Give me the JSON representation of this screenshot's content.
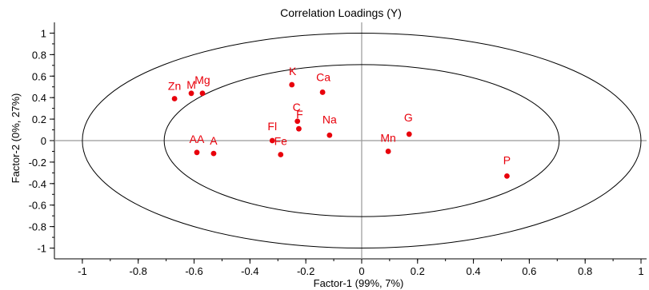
{
  "chart_data": {
    "type": "scatter",
    "title": "Correlation Loadings (Y)",
    "xlabel": "Factor-1 (99%, 7%)",
    "ylabel": "Factor-2 (0%, 27%)",
    "xlim": [
      -1.1,
      1.02
    ],
    "ylim": [
      -1.1,
      1.1
    ],
    "xticks": [
      -1,
      -0.8,
      -0.6,
      -0.4,
      -0.2,
      0,
      0.2,
      0.4,
      0.6,
      0.8,
      1
    ],
    "yticks": [
      1,
      0.8,
      0.6,
      0.4,
      0.2,
      0,
      -0.2,
      -0.4,
      -0.6,
      -0.8,
      -1
    ],
    "xtick_labels": [
      "-1",
      "-0.8",
      "-0.6",
      "-0.4",
      "-0.2",
      "0",
      "0.2",
      "0.4",
      "0.6",
      "0.8",
      "1"
    ],
    "ytick_labels": [
      "1",
      "0.8",
      "0.6",
      "0.4",
      "0.2",
      "0",
      "-0.2",
      "-0.4",
      "-0.6",
      "-0.8",
      "-1"
    ],
    "circles": [
      1.0,
      0.7071
    ],
    "grid": false,
    "point_color": "#e8000b",
    "points": [
      {
        "label": "Zn",
        "x": -0.67,
        "y": 0.39
      },
      {
        "label": "M",
        "x": -0.61,
        "y": 0.44
      },
      {
        "label": "Mg",
        "x": -0.57,
        "y": 0.44
      },
      {
        "label": "K",
        "x": -0.25,
        "y": 0.52
      },
      {
        "label": "Ca",
        "x": -0.14,
        "y": 0.45
      },
      {
        "label": "C",
        "x": -0.23,
        "y": 0.18
      },
      {
        "label": "F",
        "x": -0.225,
        "y": 0.11
      },
      {
        "label": "Na",
        "x": -0.115,
        "y": 0.05
      },
      {
        "label": "G",
        "x": 0.17,
        "y": 0.06
      },
      {
        "label": "Fl",
        "x": -0.32,
        "y": 0.0
      },
      {
        "label": "Fe",
        "x": -0.29,
        "y": -0.13
      },
      {
        "label": "AA",
        "x": -0.59,
        "y": -0.11
      },
      {
        "label": "A",
        "x": -0.53,
        "y": -0.12
      },
      {
        "label": "Mn",
        "x": 0.095,
        "y": -0.1
      },
      {
        "label": "P",
        "x": 0.52,
        "y": -0.33
      }
    ]
  }
}
